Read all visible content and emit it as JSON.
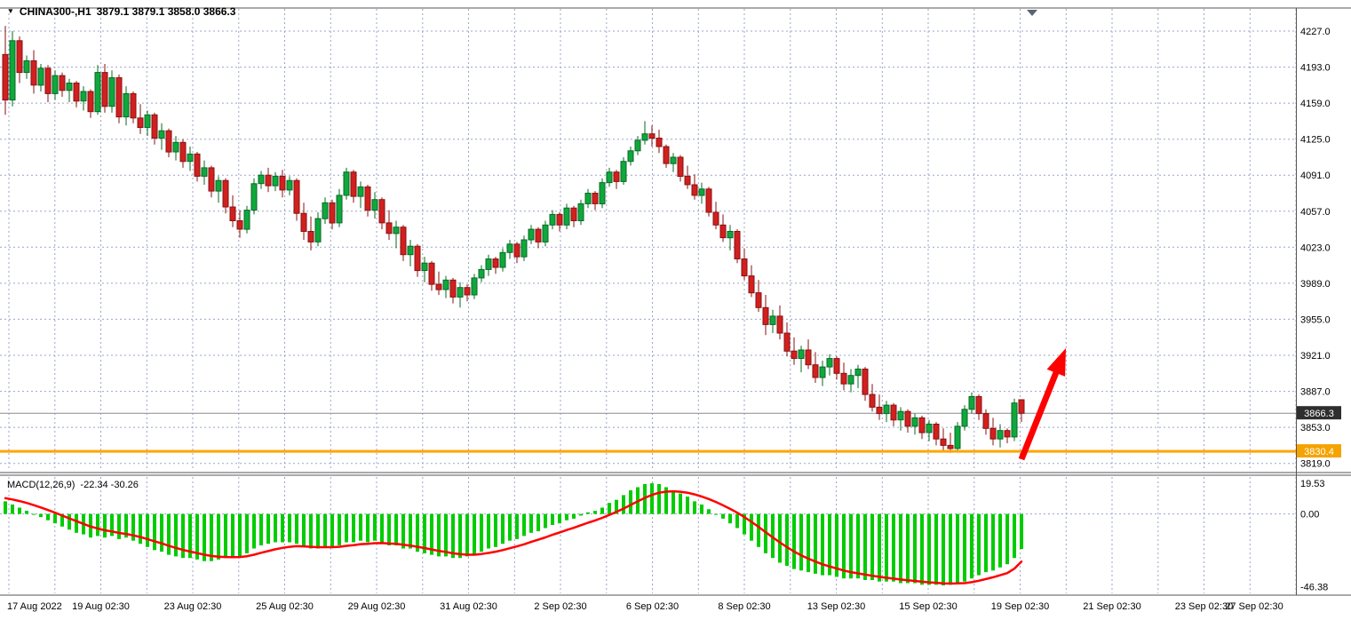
{
  "header": {
    "dropdown_icon": "▼",
    "symbol_period": "CHINA300-,H1",
    "ohlc": "3879.1 3879.1 3858.0 3866.3"
  },
  "macd_panel": {
    "label": "MACD(12,26,9)",
    "values": "-22.34 -30.26"
  },
  "colors": {
    "up_fill": "#0FA83C",
    "up_stroke": "#066A23",
    "down_fill": "#D2201F",
    "down_stroke": "#871211",
    "grid": "#9aa5c9",
    "macd_histogram": "#00CC00",
    "macd_signal": "#FF0000",
    "level_line": "#FFA500",
    "price_line": "#8C8C8C",
    "arrow": "#FF0000",
    "current_badge_bg": "#2E2E2E",
    "level_badge_bg": "#F5A300",
    "border": "#555555",
    "shift_marker": "#5a6372"
  },
  "chart_data": {
    "type": "candlestick",
    "symbol": "CHINA300-",
    "timeframe": "H1",
    "current_bar": {
      "open": 3879.1,
      "high": 3879.1,
      "low": 3858.0,
      "close": 3866.3
    },
    "price_axis": {
      "tick_labels": [
        "4227.0",
        "4193.0",
        "4159.0",
        "4125.0",
        "4091.0",
        "4057.0",
        "4023.0",
        "3989.0",
        "3955.0",
        "3921.0",
        "3887.0",
        "3853.0",
        "3819.0"
      ],
      "current_price": 3866.3,
      "current_price_label": "3866.3",
      "level_price": 3830.4,
      "level_label": "3830.4",
      "visible_max": 4248,
      "visible_min": 3812
    },
    "time_axis": {
      "tick_labels": [
        "17 Aug 2022",
        "19 Aug 02:30",
        "23 Aug 02:30",
        "25 Aug 02:30",
        "29 Aug 02:30",
        "31 Aug 02:30",
        "2 Sep 02:30",
        "6 Sep 02:30",
        "8 Sep 02:30",
        "13 Sep 02:30",
        "15 Sep 02:30",
        "19 Sep 02:30",
        "21 Sep 02:30",
        "23 Sep 02:30",
        "27 Sep 02:30"
      ]
    },
    "candles": [
      [
        4205,
        4232,
        4148,
        4162
      ],
      [
        4162,
        4227,
        4156,
        4218
      ],
      [
        4218,
        4222,
        4178,
        4188
      ],
      [
        4188,
        4204,
        4182,
        4199
      ],
      [
        4199,
        4209,
        4168,
        4176
      ],
      [
        4176,
        4196,
        4170,
        4192
      ],
      [
        4192,
        4195,
        4160,
        4168
      ],
      [
        4168,
        4190,
        4162,
        4185
      ],
      [
        4185,
        4188,
        4165,
        4171
      ],
      [
        4171,
        4182,
        4160,
        4178
      ],
      [
        4178,
        4180,
        4155,
        4161
      ],
      [
        4161,
        4175,
        4152,
        4170
      ],
      [
        4170,
        4172,
        4145,
        4151
      ],
      [
        4151,
        4195,
        4148,
        4188
      ],
      [
        4188,
        4196,
        4150,
        4156
      ],
      [
        4156,
        4190,
        4150,
        4183
      ],
      [
        4183,
        4186,
        4140,
        4146
      ],
      [
        4146,
        4175,
        4138,
        4168
      ],
      [
        4168,
        4170,
        4140,
        4145
      ],
      [
        4145,
        4158,
        4130,
        4136
      ],
      [
        4136,
        4152,
        4128,
        4148
      ],
      [
        4148,
        4150,
        4120,
        4126
      ],
      [
        4126,
        4140,
        4115,
        4133
      ],
      [
        4133,
        4135,
        4108,
        4113
      ],
      [
        4113,
        4128,
        4105,
        4122
      ],
      [
        4122,
        4125,
        4098,
        4104
      ],
      [
        4104,
        4118,
        4095,
        4111
      ],
      [
        4111,
        4113,
        4085,
        4090
      ],
      [
        4090,
        4105,
        4082,
        4098
      ],
      [
        4098,
        4100,
        4070,
        4076
      ],
      [
        4076,
        4090,
        4065,
        4086
      ],
      [
        4086,
        4088,
        4055,
        4061
      ],
      [
        4061,
        4072,
        4042,
        4048
      ],
      [
        4048,
        4058,
        4032,
        4040
      ],
      [
        4040,
        4062,
        4036,
        4058
      ],
      [
        4058,
        4088,
        4054,
        4083
      ],
      [
        4083,
        4095,
        4078,
        4091
      ],
      [
        4091,
        4098,
        4075,
        4081
      ],
      [
        4081,
        4094,
        4076,
        4090
      ],
      [
        4090,
        4096,
        4070,
        4077
      ],
      [
        4077,
        4090,
        4072,
        4086
      ],
      [
        4086,
        4088,
        4048,
        4055
      ],
      [
        4055,
        4065,
        4030,
        4038
      ],
      [
        4038,
        4052,
        4020,
        4028
      ],
      [
        4028,
        4056,
        4024,
        4050
      ],
      [
        4050,
        4070,
        4045,
        4065
      ],
      [
        4065,
        4068,
        4040,
        4046
      ],
      [
        4046,
        4078,
        4042,
        4072
      ],
      [
        4072,
        4098,
        4068,
        4094
      ],
      [
        4094,
        4096,
        4065,
        4071
      ],
      [
        4071,
        4085,
        4060,
        4080
      ],
      [
        4080,
        4082,
        4052,
        4058
      ],
      [
        4058,
        4075,
        4050,
        4068
      ],
      [
        4068,
        4070,
        4040,
        4046
      ],
      [
        4046,
        4058,
        4030,
        4036
      ],
      [
        4036,
        4048,
        4022,
        4042
      ],
      [
        4042,
        4044,
        4010,
        4016
      ],
      [
        4016,
        4030,
        4005,
        4024
      ],
      [
        4024,
        4026,
        3995,
        4001
      ],
      [
        4001,
        4014,
        3990,
        4008
      ],
      [
        4008,
        4010,
        3982,
        3988
      ],
      [
        3988,
        4000,
        3978,
        3983
      ],
      [
        3983,
        3996,
        3975,
        3992
      ],
      [
        3992,
        3994,
        3970,
        3976
      ],
      [
        3976,
        3990,
        3966,
        3985
      ],
      [
        3985,
        3988,
        3972,
        3978
      ],
      [
        3978,
        3998,
        3974,
        3994
      ],
      [
        3994,
        4006,
        3990,
        4002
      ],
      [
        4002,
        4016,
        3996,
        4012
      ],
      [
        4012,
        4014,
        3998,
        4004
      ],
      [
        4004,
        4022,
        4000,
        4018
      ],
      [
        4018,
        4030,
        4012,
        4026
      ],
      [
        4026,
        4028,
        4008,
        4014
      ],
      [
        4014,
        4034,
        4010,
        4030
      ],
      [
        4030,
        4044,
        4026,
        4040
      ],
      [
        4040,
        4042,
        4022,
        4028
      ],
      [
        4028,
        4048,
        4024,
        4044
      ],
      [
        4044,
        4058,
        4040,
        4054
      ],
      [
        4054,
        4056,
        4038,
        4044
      ],
      [
        4044,
        4064,
        4040,
        4060
      ],
      [
        4060,
        4062,
        4042,
        4048
      ],
      [
        4048,
        4068,
        4044,
        4064
      ],
      [
        4064,
        4078,
        4060,
        4074
      ],
      [
        4074,
        4076,
        4058,
        4064
      ],
      [
        4064,
        4088,
        4060,
        4084
      ],
      [
        4084,
        4098,
        4080,
        4094
      ],
      [
        4094,
        4096,
        4078,
        4085
      ],
      [
        4085,
        4108,
        4082,
        4104
      ],
      [
        4104,
        4118,
        4100,
        4114
      ],
      [
        4114,
        4128,
        4110,
        4124
      ],
      [
        4124,
        4142,
        4120,
        4130
      ],
      [
        4130,
        4138,
        4118,
        4126
      ],
      [
        4126,
        4134,
        4112,
        4118
      ],
      [
        4118,
        4120,
        4098,
        4102
      ],
      [
        4102,
        4112,
        4094,
        4108
      ],
      [
        4108,
        4110,
        4085,
        4090
      ],
      [
        4090,
        4100,
        4078,
        4082
      ],
      [
        4082,
        4092,
        4068,
        4072
      ],
      [
        4072,
        4084,
        4064,
        4078
      ],
      [
        4078,
        4080,
        4052,
        4056
      ],
      [
        4056,
        4066,
        4040,
        4044
      ],
      [
        4044,
        4054,
        4028,
        4032
      ],
      [
        4032,
        4044,
        4020,
        4038
      ],
      [
        4038,
        4040,
        4008,
        4012
      ],
      [
        4012,
        4022,
        3992,
        3996
      ],
      [
        3996,
        4006,
        3976,
        3980
      ],
      [
        3980,
        3992,
        3962,
        3966
      ],
      [
        3966,
        3978,
        3940,
        3950
      ],
      [
        3950,
        3964,
        3942,
        3958
      ],
      [
        3958,
        3968,
        3936,
        3942
      ],
      [
        3942,
        3952,
        3920,
        3925
      ],
      [
        3925,
        3938,
        3912,
        3918
      ],
      [
        3918,
        3930,
        3905,
        3926
      ],
      [
        3926,
        3936,
        3908,
        3912
      ],
      [
        3912,
        3924,
        3895,
        3900
      ],
      [
        3900,
        3916,
        3892,
        3910
      ],
      [
        3910,
        3922,
        3902,
        3918
      ],
      [
        3918,
        3920,
        3898,
        3904
      ],
      [
        3904,
        3914,
        3888,
        3894
      ],
      [
        3894,
        3908,
        3886,
        3902
      ],
      [
        3902,
        3912,
        3890,
        3908
      ],
      [
        3908,
        3910,
        3878,
        3884
      ],
      [
        3884,
        3894,
        3868,
        3872
      ],
      [
        3872,
        3884,
        3860,
        3866
      ],
      [
        3866,
        3878,
        3858,
        3874
      ],
      [
        3874,
        3876,
        3854,
        3860
      ],
      [
        3860,
        3872,
        3850,
        3868
      ],
      [
        3868,
        3870,
        3848,
        3854
      ],
      [
        3854,
        3866,
        3846,
        3862
      ],
      [
        3862,
        3864,
        3842,
        3848
      ],
      [
        3848,
        3860,
        3840,
        3856
      ],
      [
        3856,
        3858,
        3836,
        3842
      ],
      [
        3842,
        3852,
        3830,
        3836
      ],
      [
        3836,
        3848,
        3829,
        3833
      ],
      [
        3833,
        3858,
        3830,
        3854
      ],
      [
        3854,
        3874,
        3850,
        3870
      ],
      [
        3870,
        3886,
        3866,
        3882
      ],
      [
        3882,
        3884,
        3860,
        3866
      ],
      [
        3866,
        3870,
        3846,
        3852
      ],
      [
        3852,
        3862,
        3836,
        3842
      ],
      [
        3842,
        3856,
        3834,
        3850
      ],
      [
        3850,
        3852,
        3838,
        3844
      ],
      [
        3844,
        3880,
        3840,
        3876
      ],
      [
        3879.1,
        3879.1,
        3858,
        3866.3
      ]
    ],
    "macd": {
      "params": "12,26,9",
      "main_last": -22.34,
      "signal_last": -30.26,
      "axis_tick_labels": [
        "19.53",
        "0.00",
        "-46.38"
      ],
      "visible_max": 23.5,
      "visible_min": -50.5,
      "histogram": [
        8,
        6,
        4,
        2,
        0,
        -2,
        -4,
        -6,
        -8,
        -10,
        -12,
        -13,
        -15,
        -14,
        -15,
        -14,
        -16,
        -15,
        -17,
        -19,
        -21,
        -23,
        -24,
        -26,
        -27,
        -28,
        -28,
        -29,
        -30,
        -30,
        -29,
        -28,
        -28,
        -27,
        -25,
        -22,
        -20,
        -19,
        -18,
        -18,
        -18,
        -19,
        -21,
        -22,
        -22,
        -21,
        -21,
        -20,
        -18,
        -18,
        -17,
        -18,
        -17,
        -18,
        -20,
        -20,
        -22,
        -22,
        -24,
        -25,
        -26,
        -27,
        -27,
        -28,
        -28,
        -27,
        -26,
        -24,
        -22,
        -21,
        -19,
        -17,
        -16,
        -14,
        -12,
        -11,
        -9,
        -7,
        -6,
        -4,
        -3,
        -1,
        1,
        2,
        4,
        7,
        9,
        12,
        15,
        17,
        19,
        19.5,
        19,
        17,
        15,
        13,
        11,
        8,
        6,
        3,
        0,
        -3,
        -6,
        -9,
        -13,
        -17,
        -21,
        -25,
        -28,
        -31,
        -33,
        -35,
        -36,
        -37,
        -38,
        -39,
        -39,
        -40,
        -41,
        -41,
        -41,
        -42,
        -42,
        -43,
        -43,
        -43,
        -44,
        -44,
        -44,
        -45,
        -45,
        -45,
        -45.5,
        -45,
        -44,
        -43,
        -41,
        -39,
        -37,
        -36,
        -34,
        -32,
        -28,
        -22.34
      ],
      "signal": [
        10,
        9.2,
        8.2,
        7,
        5.6,
        4.1,
        2.5,
        0.8,
        -1,
        -2.8,
        -4.6,
        -6.3,
        -8,
        -9.2,
        -10.4,
        -11.1,
        -12.1,
        -12.7,
        -13.6,
        -14.7,
        -16,
        -17.4,
        -18.7,
        -20.2,
        -21.6,
        -22.9,
        -23.9,
        -24.9,
        -25.9,
        -26.7,
        -27.2,
        -27.4,
        -27.5,
        -27.4,
        -26.9,
        -25.9,
        -24.7,
        -23.6,
        -22.5,
        -21.6,
        -20.9,
        -20.5,
        -20.6,
        -20.9,
        -21.1,
        -21.1,
        -21.1,
        -20.9,
        -20.3,
        -19.8,
        -19.2,
        -19,
        -18.6,
        -18.5,
        -18.8,
        -19,
        -19.6,
        -20.1,
        -20.9,
        -21.7,
        -22.6,
        -23.5,
        -24.2,
        -25,
        -25.6,
        -25.9,
        -25.9,
        -25.5,
        -24.8,
        -24,
        -23,
        -21.8,
        -20.6,
        -19.3,
        -17.8,
        -16.4,
        -14.9,
        -13.3,
        -11.8,
        -10.2,
        -8.8,
        -7.2,
        -5.6,
        -4.1,
        -2.5,
        -0.6,
        1.3,
        3.4,
        5.7,
        8,
        10.2,
        12.1,
        13.5,
        14.2,
        14.4,
        14.1,
        13.5,
        12.4,
        11.1,
        9.5,
        7.6,
        5.5,
        3.2,
        0.8,
        -2,
        -5,
        -8.2,
        -11.6,
        -14.9,
        -18.1,
        -21.1,
        -23.9,
        -26.3,
        -28.4,
        -30.3,
        -32,
        -33.4,
        -34.7,
        -36,
        -37,
        -37.8,
        -38.6,
        -39.3,
        -40,
        -40.6,
        -41.1,
        -41.7,
        -42.2,
        -42.6,
        -43.1,
        -43.5,
        -43.8,
        -44.1,
        -44.3,
        -44.2,
        -44,
        -43.4,
        -42.5,
        -41.4,
        -40.3,
        -39,
        -37.6,
        -34.8,
        -30.26
      ]
    },
    "annotations": [
      {
        "type": "arrow-up",
        "color": "#FF0000",
        "from": [
          1150,
          517
        ],
        "to": [
          1200,
          392
        ]
      }
    ]
  }
}
